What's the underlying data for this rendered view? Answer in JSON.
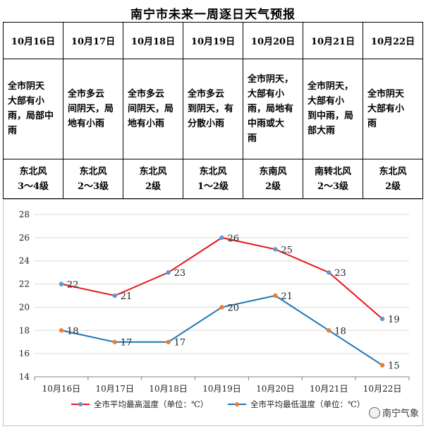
{
  "title": "南宁市未来一周逐日天气预报",
  "forecast": [
    {
      "date": "10月16日",
      "desc": [
        "全市阴天",
        "大部有小",
        "雨，局部中",
        "雨"
      ],
      "wind": [
        "东北风",
        "3～4级"
      ]
    },
    {
      "date": "10月17日",
      "desc": [
        "全市多云",
        "间阴天，局",
        "地有小雨"
      ],
      "wind": [
        "东北风",
        "2～3级"
      ]
    },
    {
      "date": "10月18日",
      "desc": [
        "全市多云",
        "间阴天，局",
        "地有小雨"
      ],
      "wind": [
        "东北风",
        "2级"
      ]
    },
    {
      "date": "10月19日",
      "desc": [
        "全市多云",
        "到阴天，有",
        "分散小雨"
      ],
      "wind": [
        "东北风",
        "1～2级"
      ]
    },
    {
      "date": "10月20日",
      "desc": [
        "全市阴天，",
        "大部有小",
        "雨，局地有",
        "中雨或大",
        "雨"
      ],
      "wind": [
        "东南风",
        "2级"
      ]
    },
    {
      "date": "10月21日",
      "desc": [
        "全市阴天，",
        "大部有小",
        "到中雨，局",
        "部大雨"
      ],
      "wind": [
        "南转北风",
        "2～3级"
      ]
    },
    {
      "date": "10月22日",
      "desc": [
        "全市阴天",
        "大部有小",
        "雨"
      ],
      "wind": [
        "东北风",
        "2级"
      ]
    }
  ],
  "chart_data": {
    "type": "line",
    "categories": [
      "10月16日",
      "10月17日",
      "10月18日",
      "10月19日",
      "10月20日",
      "10月21日",
      "10月22日"
    ],
    "series": [
      {
        "name": "全市平均最高温度（单位：℃）",
        "values": [
          22,
          21,
          23,
          26,
          25,
          23,
          19
        ],
        "color": "#e8141c",
        "marker_color": "#5b9bd5"
      },
      {
        "name": "全市平均最低温度（单位：℃）",
        "values": [
          18,
          17,
          17,
          20,
          21,
          18,
          15
        ],
        "color": "#1f77b4",
        "marker_color": "#ed7d31"
      }
    ],
    "ylim": [
      14,
      28
    ],
    "yticks": [
      14,
      16,
      18,
      20,
      22,
      24,
      26,
      28
    ],
    "grid": true,
    "data_labels": true,
    "legend": "bottom"
  },
  "watermark": "南宁气象"
}
